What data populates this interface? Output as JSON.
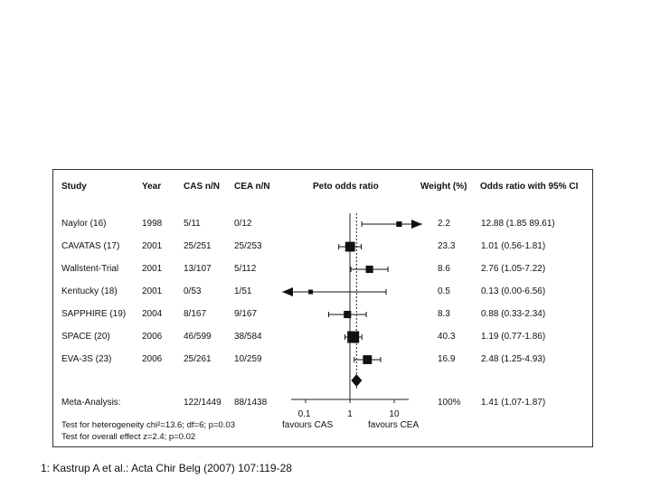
{
  "headers": {
    "study": "Study",
    "year": "Year",
    "cas": "CAS n/N",
    "cea": "CEA n/N",
    "plot": "Peto odds ratio",
    "weight": "Weight (%)",
    "or": "Odds ratio with 95% CI"
  },
  "chart_data": {
    "type": "forest",
    "scale": "log",
    "xlim": [
      0.1,
      20
    ],
    "ticks": [
      {
        "value": 0.1,
        "label": "0.1"
      },
      {
        "value": 1,
        "label": "1"
      },
      {
        "value": 10,
        "label": "10"
      }
    ],
    "reference_line": 1,
    "pooled_line": 1.41,
    "left_label": "favours CAS",
    "right_label": "favours CEA",
    "studies": [
      {
        "study": "Naylor (16)",
        "year": "1998",
        "cas": "5/11",
        "cea": "0/12",
        "weight": "2.2",
        "or_text": "12.88 (1.85 89.61)",
        "or": 12.88,
        "lo": 1.85,
        "hi": 89.61
      },
      {
        "study": "CAVATAS (17)",
        "year": "2001",
        "cas": "25/251",
        "cea": "25/253",
        "weight": "23.3",
        "or_text": "1.01 (0.56-1.81)",
        "or": 1.01,
        "lo": 0.56,
        "hi": 1.81
      },
      {
        "study": "Wallstent-Trial",
        "year": "2001",
        "cas": "13/107",
        "cea": "5/112",
        "weight": "8.6",
        "or_text": "2.76 (1.05-7.22)",
        "or": 2.76,
        "lo": 1.05,
        "hi": 7.22
      },
      {
        "study": "Kentucky (18)",
        "year": "2001",
        "cas": "0/53",
        "cea": "1/51",
        "weight": "0.5",
        "or_text": "0.13 (0.00-6.56)",
        "or": 0.13,
        "lo": 0.0,
        "hi": 6.56
      },
      {
        "study": "SAPPHIRE (19)",
        "year": "2004",
        "cas": "8/167",
        "cea": "9/167",
        "weight": "8.3",
        "or_text": "0.88 (0.33-2.34)",
        "or": 0.88,
        "lo": 0.33,
        "hi": 2.34
      },
      {
        "study": "SPACE (20)",
        "year": "2006",
        "cas": "46/599",
        "cea": "38/584",
        "weight": "40.3",
        "or_text": "1.19 (0.77-1.86)",
        "or": 1.19,
        "lo": 0.77,
        "hi": 1.86
      },
      {
        "study": "EVA-3S (23)",
        "year": "2006",
        "cas": "25/261",
        "cea": "10/259",
        "weight": "16.9",
        "or_text": "2.48 (1.25-4.93)",
        "or": 2.48,
        "lo": 1.25,
        "hi": 4.93
      }
    ],
    "meta": {
      "study": "Meta-Analysis:",
      "cas": "122/1449",
      "cea": "88/1438",
      "weight": "100%",
      "or_text": "1.41 (1.07-1.87)",
      "or": 1.41,
      "lo": 1.07,
      "hi": 1.87
    }
  },
  "footer": {
    "heterogeneity": "Test for heterogeneity chi²=13.6; df=6; p=0.03",
    "overall": "Test for overall effect z=2.4; p=0.02"
  },
  "caption": "1: Kastrup A et al.: Acta Chir Belg (2007) 107:119-28"
}
